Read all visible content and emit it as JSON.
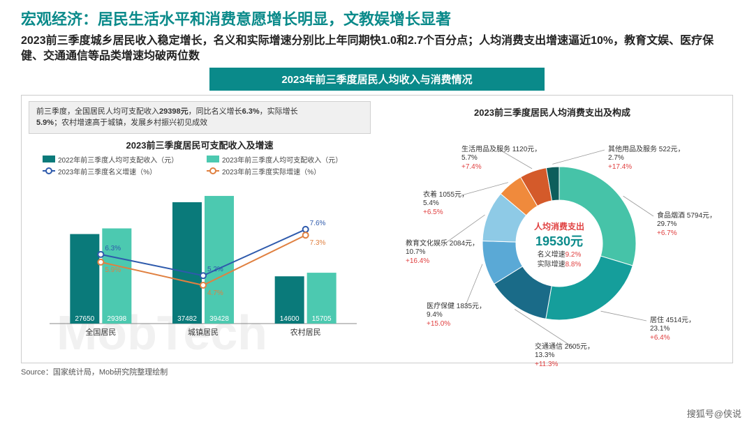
{
  "title": "宏观经济：居民生活水平和消费意愿增长明显，文教娱增长显著",
  "subtitle": "2023前三季度城乡居民收入稳定增长，名义和实际增速分别比上年同期快1.0和2.7个百分点；人均消费支出增速逼近10%，教育文娱、医疗保健、交通通信等品类增速均破两位数",
  "banner": "2023年前三季度居民人均收入与消费情况",
  "note_p1": "前三季度，全国居民人均可支配收入",
  "note_v1": "29398元",
  "note_p2": "，同比名义增长",
  "note_v2": "6.3%",
  "note_p3": "，实际增长",
  "note_v3": "5.9%",
  "note_p4": "；农村增速高于城镇，发展乡村振兴初见成效",
  "bar_chart": {
    "title": "2023前三季度居民可支配收入及增速",
    "legend": {
      "a": "2022年前三季度人均可支配收入（元）",
      "b": "2023年前三季度人均可支配收入（元）",
      "c": "2023年前三季度名义增速（%）",
      "d": "2023年前三季度实际增速（%）"
    },
    "colors": {
      "bar2022": "#0a7a7a",
      "bar2023": "#4cc9b0",
      "line_nominal": "#2e5aac",
      "line_real": "#e08040"
    },
    "ylim": [
      0,
      42000
    ],
    "categories": [
      "全国居民",
      "城镇居民",
      "农村居民"
    ],
    "bar2022": [
      27650,
      37482,
      14600
    ],
    "bar2023": [
      29398,
      39428,
      15705
    ],
    "nominal": [
      6.3,
      5.2,
      7.6
    ],
    "real": [
      5.9,
      4.7,
      7.3
    ],
    "line_ylim": [
      3,
      9
    ]
  },
  "donut": {
    "title": "2023前三季度居民人均消费支出及构成",
    "center": {
      "l1": "人均消费支出",
      "l2": "19530元",
      "l3a": "名义增速",
      "l3av": "9.2%",
      "l3b": "实际增速",
      "l3bv": "8.8%"
    },
    "slices": [
      {
        "name": "食品烟酒",
        "value": 5794,
        "pct": 29.7,
        "growth": "+6.7%",
        "color": "#46c3a8"
      },
      {
        "name": "居住",
        "value": 4514,
        "pct": 23.1,
        "growth": "+6.4%",
        "color": "#159e9b"
      },
      {
        "name": "交通通信",
        "value": 2605,
        "pct": 13.3,
        "growth": "+11.3%",
        "color": "#1a6b88"
      },
      {
        "name": "医疗保健",
        "value": 1835,
        "pct": 9.4,
        "growth": "+15.0%",
        "color": "#5aa9d6"
      },
      {
        "name": "教育文化娱乐",
        "value": 2084,
        "pct": 10.7,
        "growth": "+16.4%",
        "color": "#8ecae6"
      },
      {
        "name": "衣着",
        "value": 1055,
        "pct": 5.4,
        "growth": "+6.5%",
        "color": "#f08a3c"
      },
      {
        "name": "生活用品及服务",
        "value": 1120,
        "pct": 5.7,
        "growth": "+7.4%",
        "color": "#d45a2a"
      },
      {
        "name": "其他用品及服务",
        "value": 522,
        "pct": 2.7,
        "growth": "+17.4%",
        "color": "#0d5e5c"
      }
    ]
  },
  "source": "Source：国家统计局，Mob研究院整理绘制",
  "footer": "搜狐号@侠说",
  "wm": "MobTech"
}
